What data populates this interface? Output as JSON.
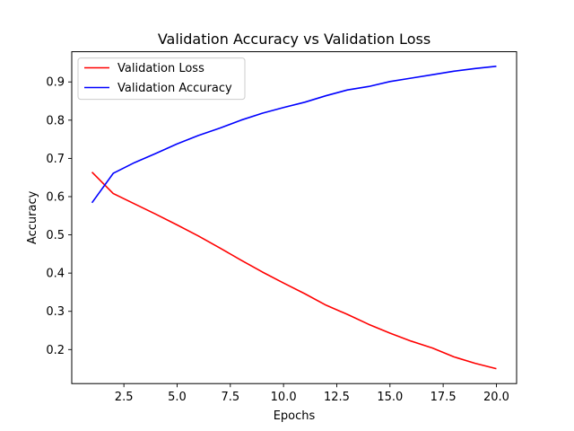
{
  "chart_data": {
    "type": "line",
    "title": "Validation Accuracy vs Validation Loss",
    "xlabel": "Epochs",
    "ylabel": "Accuracy",
    "xlim": [
      0.05,
      20.95
    ],
    "ylim": [
      0.111,
      0.979
    ],
    "xticks": [
      2.5,
      5.0,
      7.5,
      10.0,
      12.5,
      15.0,
      17.5,
      20.0
    ],
    "xtick_labels": [
      "2.5",
      "5.0",
      "7.5",
      "10.0",
      "12.5",
      "15.0",
      "17.5",
      "20.0"
    ],
    "yticks": [
      0.2,
      0.3,
      0.4,
      0.5,
      0.6,
      0.7,
      0.8,
      0.9
    ],
    "ytick_labels": [
      "0.2",
      "0.3",
      "0.4",
      "0.5",
      "0.6",
      "0.7",
      "0.8",
      "0.9"
    ],
    "grid": false,
    "legend_position": "top-left",
    "x": [
      1,
      2,
      3,
      4,
      5,
      6,
      7,
      8,
      9,
      10,
      11,
      12,
      13,
      14,
      15,
      16,
      17,
      18,
      19,
      20
    ],
    "series": [
      {
        "name": "Validation Loss",
        "color": "#ff0000",
        "values": [
          0.664,
          0.608,
          0.581,
          0.554,
          0.526,
          0.497,
          0.466,
          0.434,
          0.403,
          0.374,
          0.346,
          0.316,
          0.292,
          0.266,
          0.243,
          0.222,
          0.204,
          0.181,
          0.164,
          0.15
        ]
      },
      {
        "name": "Validation Accuracy",
        "color": "#0000ff",
        "values": [
          0.584,
          0.661,
          0.689,
          0.713,
          0.738,
          0.76,
          0.779,
          0.8,
          0.818,
          0.833,
          0.847,
          0.864,
          0.879,
          0.888,
          0.901,
          0.91,
          0.919,
          0.928,
          0.935,
          0.941
        ]
      }
    ]
  }
}
